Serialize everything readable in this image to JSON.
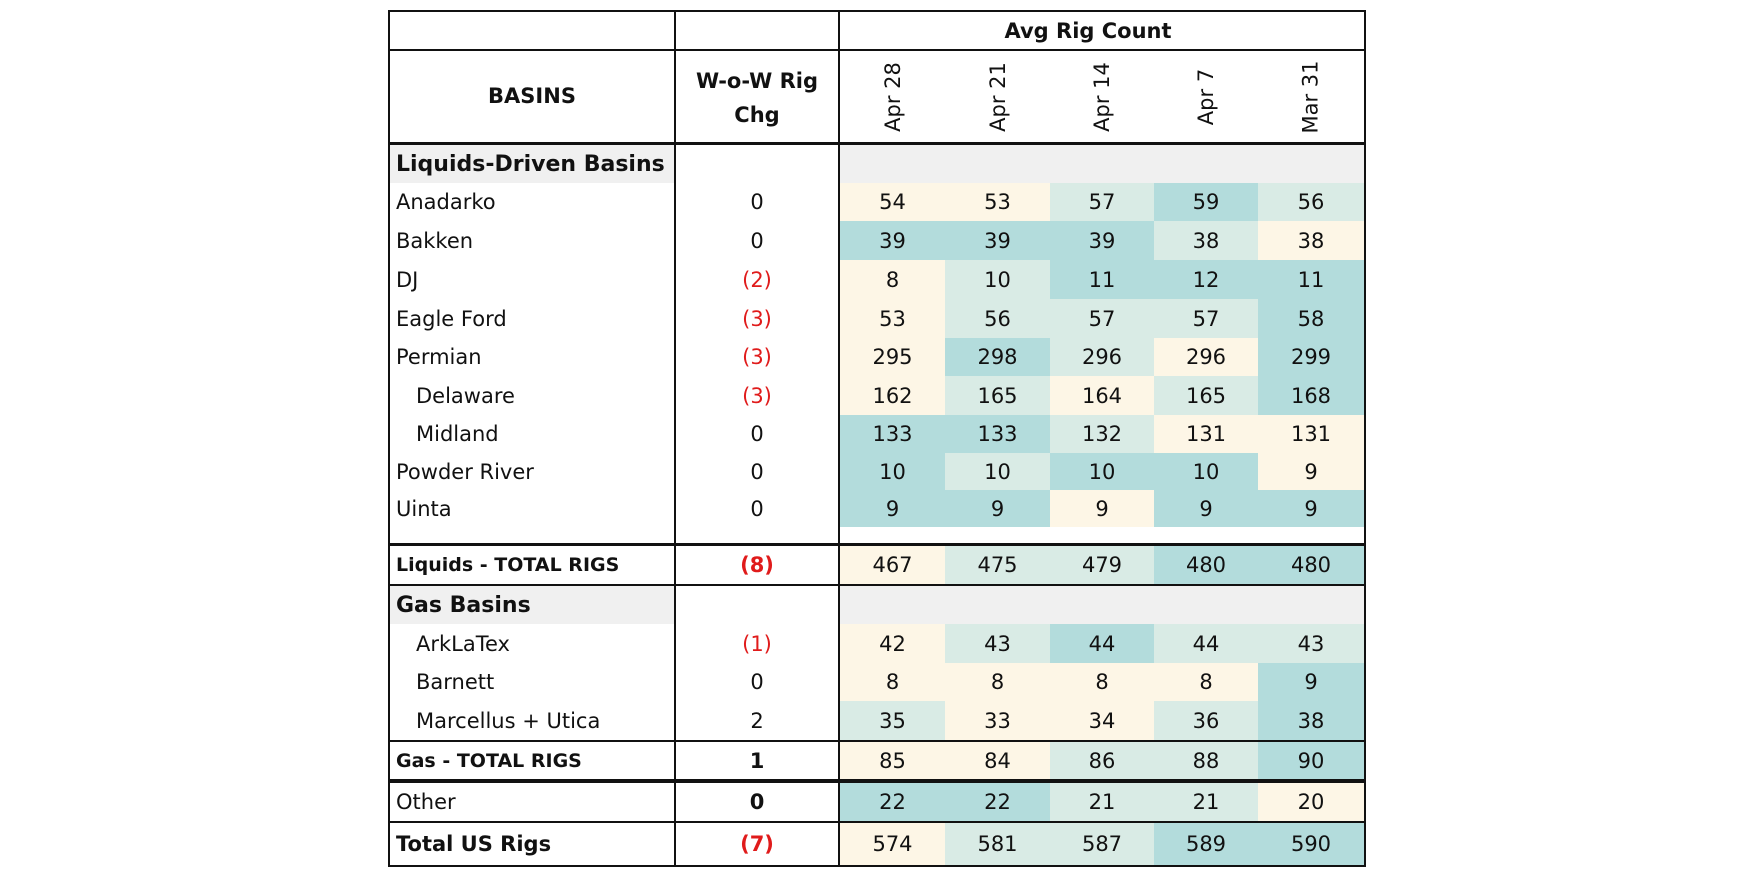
{
  "table": {
    "headers": {
      "basins": "BASINS",
      "wow_line1": "W-o-W Rig",
      "wow_line2": "Chg",
      "avg_rig_count": "Avg Rig Count",
      "dates": [
        "Apr 28",
        "Apr 21",
        "Apr 14",
        "Apr 7",
        "Mar 31"
      ]
    },
    "sections": {
      "liquids": "Liquids-Driven Basins",
      "gas": "Gas Basins"
    },
    "colors": {
      "low": "#fdf6e6",
      "mid": "#d9ebe5",
      "high": "#b3dcdc",
      "negative": "#e01b1b",
      "section_bg": "#f0f0f0"
    },
    "rows": [
      {
        "name": "Anadarko",
        "chg": "0",
        "vals": [
          "54",
          "53",
          "57",
          "59",
          "56"
        ],
        "shade": [
          "low",
          "low",
          "mid",
          "high",
          "mid"
        ]
      },
      {
        "name": "Bakken",
        "chg": "0",
        "vals": [
          "39",
          "39",
          "39",
          "38",
          "38"
        ],
        "shade": [
          "high",
          "high",
          "high",
          "mid",
          "low"
        ]
      },
      {
        "name": "DJ",
        "chg": "(2)",
        "vals": [
          "8",
          "10",
          "11",
          "12",
          "11"
        ],
        "shade": [
          "low",
          "mid",
          "high",
          "high",
          "high"
        ]
      },
      {
        "name": "Eagle Ford",
        "chg": "(3)",
        "vals": [
          "53",
          "56",
          "57",
          "57",
          "58"
        ],
        "shade": [
          "low",
          "mid",
          "mid",
          "mid",
          "high"
        ]
      },
      {
        "name": "Permian",
        "chg": "(3)",
        "vals": [
          "295",
          "298",
          "296",
          "296",
          "299"
        ],
        "shade": [
          "low",
          "high",
          "mid",
          "low",
          "high"
        ]
      },
      {
        "name": "Delaware",
        "chg": "(3)",
        "vals": [
          "162",
          "165",
          "164",
          "165",
          "168"
        ],
        "shade": [
          "low",
          "mid",
          "low",
          "mid",
          "high"
        ]
      },
      {
        "name": "Midland",
        "chg": "0",
        "vals": [
          "133",
          "133",
          "132",
          "131",
          "131"
        ],
        "shade": [
          "high",
          "high",
          "mid",
          "low",
          "low"
        ]
      },
      {
        "name": "Powder River",
        "chg": "0",
        "vals": [
          "10",
          "10",
          "10",
          "10",
          "9"
        ],
        "shade": [
          "high",
          "mid",
          "high",
          "high",
          "low"
        ]
      },
      {
        "name": "Uinta",
        "chg": "0",
        "vals": [
          "9",
          "9",
          "9",
          "9",
          "9"
        ],
        "shade": [
          "high",
          "high",
          "low",
          "high",
          "high"
        ]
      },
      {
        "name": "Liquids - TOTAL RIGS",
        "chg": "(8)",
        "vals": [
          "467",
          "475",
          "479",
          "480",
          "480"
        ],
        "shade": [
          "low",
          "mid",
          "mid",
          "high",
          "high"
        ]
      },
      {
        "name": "ArkLaTex",
        "chg": "(1)",
        "vals": [
          "42",
          "43",
          "44",
          "44",
          "43"
        ],
        "shade": [
          "low",
          "mid",
          "high",
          "mid",
          "mid"
        ]
      },
      {
        "name": "Barnett",
        "chg": "0",
        "vals": [
          "8",
          "8",
          "8",
          "8",
          "9"
        ],
        "shade": [
          "low",
          "low",
          "low",
          "low",
          "high"
        ]
      },
      {
        "name": "Marcellus + Utica",
        "chg": "2",
        "vals": [
          "35",
          "33",
          "34",
          "36",
          "38"
        ],
        "shade": [
          "mid",
          "low",
          "low",
          "mid",
          "high"
        ]
      },
      {
        "name": "Gas - TOTAL RIGS",
        "chg": "1",
        "vals": [
          "85",
          "84",
          "86",
          "88",
          "90"
        ],
        "shade": [
          "low",
          "low",
          "mid",
          "mid",
          "high"
        ]
      },
      {
        "name": "Other",
        "chg": "0",
        "vals": [
          "22",
          "22",
          "21",
          "21",
          "20"
        ],
        "shade": [
          "high",
          "high",
          "mid",
          "mid",
          "low"
        ]
      },
      {
        "name": "Total US Rigs",
        "chg": "(7)",
        "vals": [
          "574",
          "581",
          "587",
          "589",
          "590"
        ],
        "shade": [
          "low",
          "mid",
          "mid",
          "high",
          "high"
        ]
      }
    ]
  }
}
